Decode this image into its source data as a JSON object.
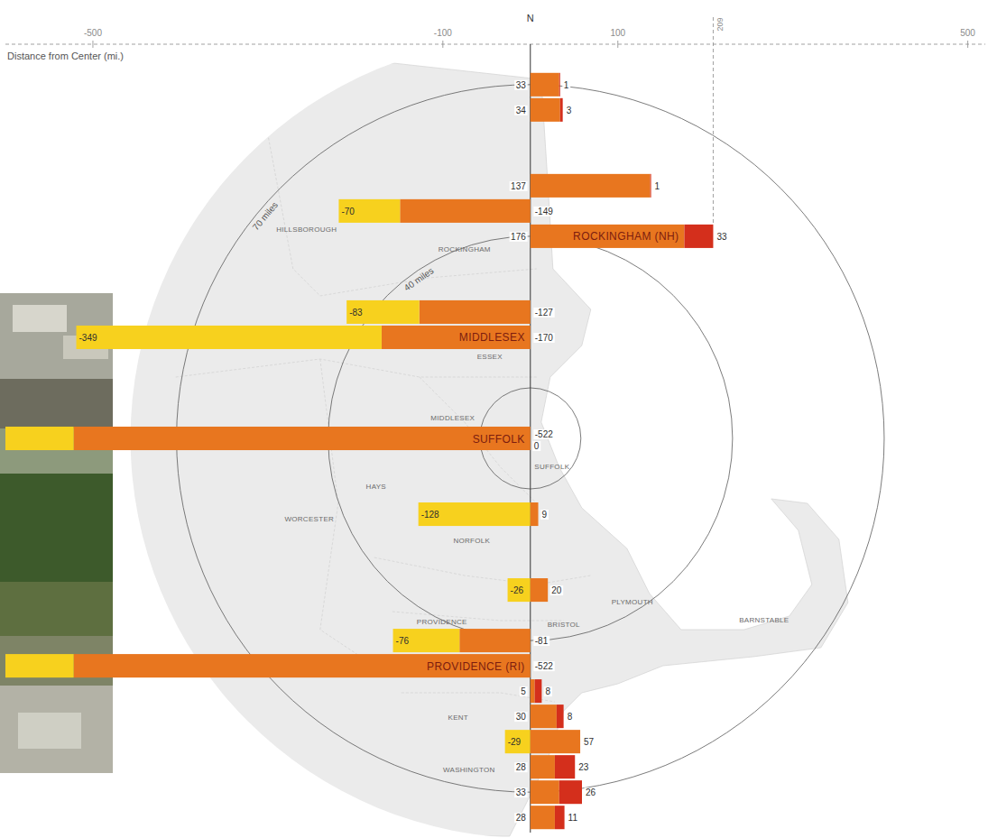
{
  "chart_data": {
    "type": "bar",
    "orientation": "horizontal",
    "stacked": true,
    "data_labels": true,
    "tick_labels": "x",
    "grid": false,
    "x_label": "Distance from Center (mi.)",
    "north_label": "N",
    "xlim": [
      -600,
      520
    ],
    "xticks": [
      -500,
      -100,
      100,
      500
    ],
    "ylim": [
      -78,
      78
    ],
    "categories": [
      null,
      null,
      null,
      null,
      "ROCKINGHAM (NH)",
      null,
      "MIDDLESEX",
      "SUFFOLK",
      null,
      null,
      null,
      "PROVIDENCE (RI)",
      null,
      null,
      null,
      null,
      null,
      null
    ],
    "y": [
      70,
      65,
      50,
      45,
      40,
      25,
      20,
      0,
      -15,
      -30,
      -40,
      -45,
      -50,
      -55,
      -60,
      -65,
      -70,
      -75
    ],
    "series": [
      {
        "color": "#e8761f",
        "values": [
          null,
          null,
          null,
          -149,
          null,
          -127,
          -170,
          -522,
          null,
          null,
          -81,
          -522,
          null,
          null,
          null,
          null,
          null,
          null
        ]
      },
      {
        "color": "#f7d11e",
        "values": [
          null,
          null,
          null,
          -70,
          null,
          -83,
          -349,
          -100,
          -128,
          -26,
          -76,
          -100,
          null,
          null,
          -29,
          null,
          null,
          null
        ],
        "value_labels": [
          null,
          null,
          null,
          "-70",
          null,
          "-83",
          "-349",
          null,
          "-128",
          "-26",
          "-76",
          null,
          null,
          null,
          "-29",
          null,
          null,
          null
        ]
      },
      {
        "color": "#e8761f",
        "values": [
          33,
          34,
          137,
          null,
          176,
          null,
          null,
          0,
          9,
          20,
          null,
          null,
          5,
          30,
          57,
          28,
          33,
          28
        ]
      },
      {
        "color": "#d42f1c",
        "values": [
          1,
          3,
          1,
          null,
          33,
          null,
          null,
          null,
          null,
          null,
          null,
          null,
          8,
          8,
          null,
          23,
          26,
          11
        ]
      }
    ],
    "reference_lines": [
      {
        "x": 209,
        "label": "209"
      }
    ],
    "rings": [
      10,
      40,
      70
    ],
    "ring_labels": [
      null,
      "40 miles",
      "70 miles"
    ],
    "map_labels": [
      "HILLSBOROUGH",
      "ROCKINGHAM",
      "ESSEX",
      "MIDDLESEX",
      "SUFFOLK",
      "HAYS",
      "WORCESTER",
      "NORFOLK",
      "PLYMOUTH",
      "PROVIDENCE",
      "BRISTOL",
      "KENT",
      "WASHINGTON",
      "BARNSTABLE"
    ]
  }
}
